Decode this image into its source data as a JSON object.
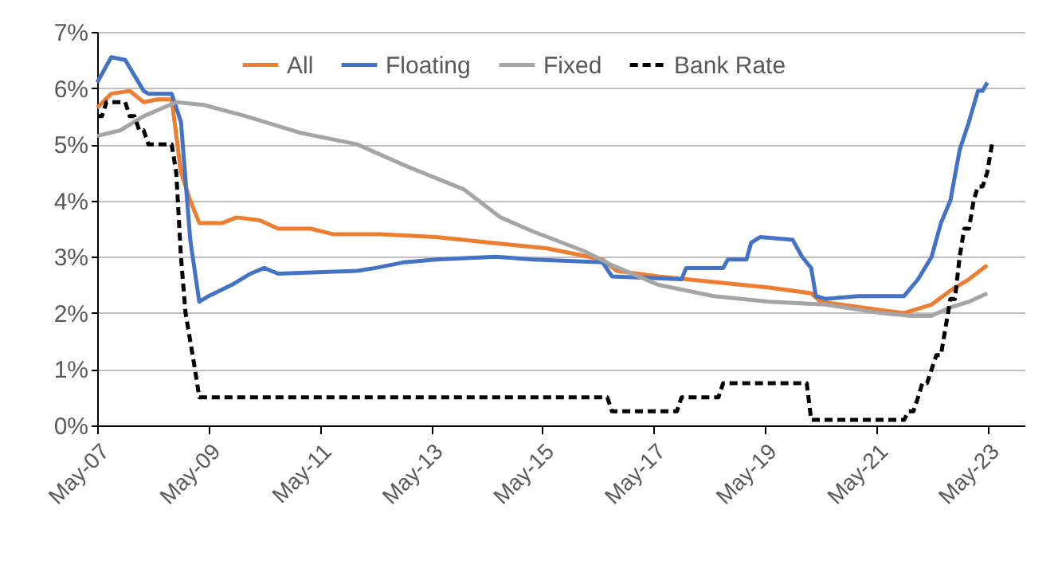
{
  "chart_data": {
    "type": "line",
    "xlim": [
      "2007-05",
      "2024-01"
    ],
    "ylim": [
      0,
      7
    ],
    "xticks": [
      {
        "value": "2007-05",
        "label": "May-07"
      },
      {
        "value": "2009-05",
        "label": "May-09"
      },
      {
        "value": "2011-05",
        "label": "May-11"
      },
      {
        "value": "2013-05",
        "label": "May-13"
      },
      {
        "value": "2015-05",
        "label": "May-15"
      },
      {
        "value": "2017-05",
        "label": "May-17"
      },
      {
        "value": "2019-05",
        "label": "May-19"
      },
      {
        "value": "2021-05",
        "label": "May-21"
      },
      {
        "value": "2023-05",
        "label": "May-23"
      }
    ],
    "yticks": [
      {
        "value": 0,
        "label": "0%"
      },
      {
        "value": 1,
        "label": "1%"
      },
      {
        "value": 2,
        "label": "2%"
      },
      {
        "value": 3,
        "label": "3%"
      },
      {
        "value": 4,
        "label": "4%"
      },
      {
        "value": 5,
        "label": "5%"
      },
      {
        "value": 6,
        "label": "6%"
      },
      {
        "value": 7,
        "label": "7%"
      }
    ],
    "grid": "y",
    "legend": "top",
    "series": [
      {
        "name": "All",
        "color": "#ed7d31",
        "line_style": "solid",
        "x": [
          "2007-05",
          "2007-08",
          "2007-12",
          "2008-03",
          "2008-06",
          "2008-09",
          "2008-11",
          "2009-01",
          "2009-03",
          "2009-08",
          "2009-11",
          "2010-04",
          "2010-08",
          "2011-03",
          "2011-08",
          "2012-06",
          "2013-06",
          "2014-06",
          "2015-06",
          "2016-06",
          "2016-09",
          "2017-06",
          "2018-06",
          "2019-06",
          "2020-03",
          "2020-05",
          "2021-06",
          "2021-11",
          "2022-05",
          "2022-09",
          "2023-01",
          "2023-05"
        ],
        "values": [
          5.65,
          5.9,
          5.95,
          5.75,
          5.8,
          5.8,
          4.5,
          4.0,
          3.6,
          3.6,
          3.7,
          3.65,
          3.5,
          3.5,
          3.4,
          3.4,
          3.35,
          3.25,
          3.15,
          2.95,
          2.75,
          2.65,
          2.55,
          2.45,
          2.35,
          2.2,
          2.05,
          2.0,
          2.15,
          2.4,
          2.6,
          2.85
        ]
      },
      {
        "name": "Floating",
        "color": "#4472c4",
        "line_style": "solid",
        "x": [
          "2007-05",
          "2007-08",
          "2007-11",
          "2008-03",
          "2008-04",
          "2008-09",
          "2008-11",
          "2009-01",
          "2009-03",
          "2009-05",
          "2009-10",
          "2010-02",
          "2010-05",
          "2010-08",
          "2012-01",
          "2012-05",
          "2012-11",
          "2013-06",
          "2014-07",
          "2015-03",
          "2016-06",
          "2016-08",
          "2017-11",
          "2017-12",
          "2018-08",
          "2018-09",
          "2019-01",
          "2019-02",
          "2019-04",
          "2019-11",
          "2020-01",
          "2020-03",
          "2020-04",
          "2020-06",
          "2021-01",
          "2021-11",
          "2022-02",
          "2022-05",
          "2022-07",
          "2022-09",
          "2022-11",
          "2023-01",
          "2023-03",
          "2023-04",
          "2023-05"
        ],
        "values": [
          6.1,
          6.55,
          6.5,
          5.95,
          5.9,
          5.9,
          5.4,
          3.3,
          2.2,
          2.3,
          2.5,
          2.7,
          2.8,
          2.7,
          2.75,
          2.8,
          2.9,
          2.95,
          3.0,
          2.95,
          2.9,
          2.65,
          2.6,
          2.8,
          2.8,
          2.95,
          2.95,
          3.25,
          3.35,
          3.3,
          3.0,
          2.8,
          2.3,
          2.25,
          2.3,
          2.3,
          2.6,
          3.0,
          3.6,
          4.0,
          4.9,
          5.4,
          5.95,
          5.95,
          6.1
        ]
      },
      {
        "name": "Fixed",
        "color": "#a5a5a5",
        "line_style": "solid",
        "x": [
          "2007-05",
          "2007-10",
          "2008-03",
          "2008-10",
          "2009-04",
          "2010-01",
          "2011-01",
          "2012-01",
          "2012-12",
          "2013-12",
          "2014-08",
          "2015-03",
          "2016-02",
          "2016-08",
          "2017-06",
          "2018-06",
          "2019-06",
          "2020-06",
          "2021-06",
          "2021-12",
          "2022-05",
          "2022-09",
          "2023-01",
          "2023-05"
        ],
        "values": [
          5.15,
          5.25,
          5.5,
          5.75,
          5.7,
          5.5,
          5.2,
          5.0,
          4.6,
          4.2,
          3.7,
          3.45,
          3.1,
          2.85,
          2.5,
          2.3,
          2.2,
          2.15,
          2.0,
          1.95,
          1.95,
          2.1,
          2.2,
          2.35
        ]
      },
      {
        "name": "Bank Rate",
        "color": "#000000",
        "line_style": "dashed",
        "x": [
          "2007-05",
          "2007-06",
          "2007-07",
          "2007-11",
          "2007-12",
          "2008-01",
          "2008-02",
          "2008-03",
          "2008-04",
          "2008-09",
          "2008-10",
          "2008-11",
          "2008-12",
          "2009-01",
          "2009-02",
          "2009-03",
          "2016-07",
          "2016-08",
          "2017-10",
          "2017-11",
          "2018-07",
          "2018-08",
          "2020-02",
          "2020-03",
          "2021-11",
          "2021-12",
          "2022-01",
          "2022-02",
          "2022-03",
          "2022-04",
          "2022-05",
          "2022-06",
          "2022-07",
          "2022-08",
          "2022-09",
          "2022-10",
          "2022-11",
          "2022-12",
          "2023-01",
          "2023-02",
          "2023-03",
          "2023-04",
          "2023-05",
          "2023-06"
        ],
        "values": [
          5.5,
          5.5,
          5.75,
          5.75,
          5.5,
          5.5,
          5.25,
          5.25,
          5.0,
          5.0,
          4.5,
          3.0,
          2.0,
          1.5,
          1.0,
          0.5,
          0.5,
          0.25,
          0.25,
          0.5,
          0.5,
          0.75,
          0.75,
          0.1,
          0.1,
          0.25,
          0.25,
          0.5,
          0.75,
          0.75,
          1.0,
          1.25,
          1.25,
          1.75,
          2.25,
          2.25,
          3.0,
          3.5,
          3.5,
          4.0,
          4.25,
          4.25,
          4.5,
          5.0
        ]
      }
    ]
  }
}
